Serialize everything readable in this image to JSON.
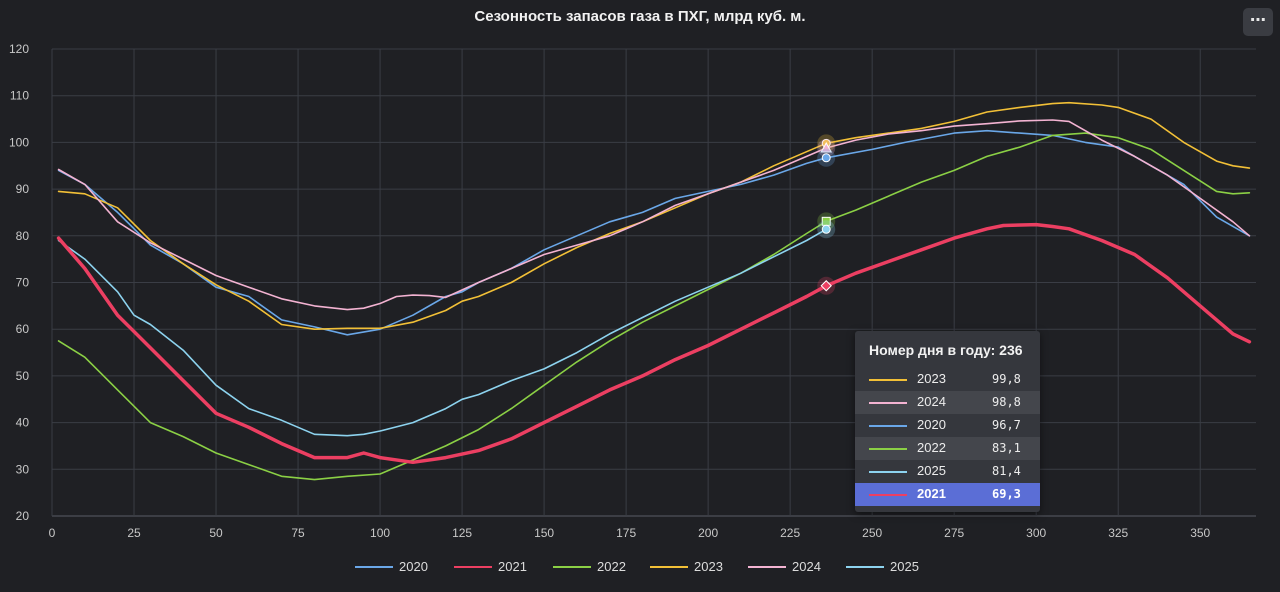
{
  "header": {
    "menu_icon": "⋯"
  },
  "chart_data": {
    "type": "line",
    "title": "Сезонность запасов газа в ПХГ, млрд куб. м.",
    "xlabel": "",
    "ylabel": "",
    "xlim": [
      0,
      367
    ],
    "ylim": [
      20,
      120
    ],
    "x_ticks": [
      0,
      25,
      50,
      75,
      100,
      125,
      150,
      175,
      200,
      225,
      250,
      275,
      300,
      325,
      350
    ],
    "y_ticks": [
      20,
      30,
      40,
      50,
      60,
      70,
      80,
      90,
      100,
      110,
      120
    ],
    "grid": true,
    "legend_position": "bottom",
    "highlight_day": 236,
    "series": [
      {
        "name": "2020",
        "color": "#6aa7e8",
        "width": 1.6,
        "points": [
          [
            2,
            94
          ],
          [
            10,
            91
          ],
          [
            20,
            85
          ],
          [
            30,
            78
          ],
          [
            40,
            74
          ],
          [
            50,
            69
          ],
          [
            60,
            67
          ],
          [
            70,
            62
          ],
          [
            80,
            60.5
          ],
          [
            90,
            58.8
          ],
          [
            100,
            60
          ],
          [
            110,
            63
          ],
          [
            120,
            67
          ],
          [
            125,
            68
          ],
          [
            130,
            70
          ],
          [
            140,
            73
          ],
          [
            150,
            77
          ],
          [
            160,
            80
          ],
          [
            170,
            83
          ],
          [
            180,
            85
          ],
          [
            190,
            88
          ],
          [
            200,
            89.5
          ],
          [
            210,
            91
          ],
          [
            220,
            93
          ],
          [
            230,
            95.5
          ],
          [
            236,
            96.7
          ],
          [
            250,
            98.5
          ],
          [
            260,
            100
          ],
          [
            275,
            102
          ],
          [
            285,
            102.5
          ],
          [
            295,
            102
          ],
          [
            305,
            101.5
          ],
          [
            315,
            100
          ],
          [
            325,
            99
          ],
          [
            335,
            95
          ],
          [
            345,
            91
          ],
          [
            355,
            84
          ],
          [
            365,
            80
          ]
        ]
      },
      {
        "name": "2021",
        "color": "#ec3f62",
        "width": 3.5,
        "points": [
          [
            2,
            79.5
          ],
          [
            10,
            73
          ],
          [
            20,
            63
          ],
          [
            30,
            56
          ],
          [
            40,
            49
          ],
          [
            50,
            42
          ],
          [
            60,
            39
          ],
          [
            70,
            35.5
          ],
          [
            80,
            32.5
          ],
          [
            90,
            32.5
          ],
          [
            95,
            33.5
          ],
          [
            100,
            32.5
          ],
          [
            110,
            31.5
          ],
          [
            120,
            32.5
          ],
          [
            130,
            34
          ],
          [
            140,
            36.5
          ],
          [
            150,
            40
          ],
          [
            160,
            43.5
          ],
          [
            170,
            47
          ],
          [
            180,
            50
          ],
          [
            190,
            53.5
          ],
          [
            200,
            56.5
          ],
          [
            210,
            60
          ],
          [
            220,
            63.5
          ],
          [
            230,
            67
          ],
          [
            236,
            69.3
          ],
          [
            245,
            72
          ],
          [
            255,
            74.5
          ],
          [
            265,
            77
          ],
          [
            275,
            79.5
          ],
          [
            285,
            81.5
          ],
          [
            290,
            82.2
          ],
          [
            300,
            82.4
          ],
          [
            305,
            82
          ],
          [
            310,
            81.5
          ],
          [
            320,
            79
          ],
          [
            330,
            76
          ],
          [
            340,
            71
          ],
          [
            350,
            65
          ],
          [
            360,
            59
          ],
          [
            365,
            57.3
          ]
        ]
      },
      {
        "name": "2022",
        "color": "#8bd045",
        "width": 1.6,
        "points": [
          [
            2,
            57.5
          ],
          [
            10,
            54
          ],
          [
            20,
            47
          ],
          [
            30,
            40
          ],
          [
            40,
            37
          ],
          [
            50,
            33.5
          ],
          [
            60,
            31
          ],
          [
            70,
            28.5
          ],
          [
            80,
            27.8
          ],
          [
            90,
            28.5
          ],
          [
            100,
            29
          ],
          [
            110,
            32
          ],
          [
            120,
            35
          ],
          [
            130,
            38.5
          ],
          [
            140,
            43
          ],
          [
            150,
            48
          ],
          [
            160,
            53
          ],
          [
            170,
            57.5
          ],
          [
            180,
            61.5
          ],
          [
            190,
            65
          ],
          [
            200,
            68.5
          ],
          [
            210,
            72
          ],
          [
            220,
            76
          ],
          [
            230,
            80.5
          ],
          [
            236,
            83.1
          ],
          [
            245,
            85.5
          ],
          [
            255,
            88.5
          ],
          [
            265,
            91.5
          ],
          [
            275,
            94
          ],
          [
            285,
            97
          ],
          [
            295,
            99
          ],
          [
            305,
            101.5
          ],
          [
            315,
            102
          ],
          [
            325,
            101
          ],
          [
            335,
            98.5
          ],
          [
            345,
            94
          ],
          [
            355,
            89.5
          ],
          [
            360,
            89
          ],
          [
            365,
            89.2
          ]
        ]
      },
      {
        "name": "2023",
        "color": "#f2c037",
        "width": 1.6,
        "points": [
          [
            2,
            89.5
          ],
          [
            10,
            89
          ],
          [
            20,
            86
          ],
          [
            30,
            79
          ],
          [
            40,
            74
          ],
          [
            50,
            69.5
          ],
          [
            60,
            66
          ],
          [
            70,
            61
          ],
          [
            80,
            60
          ],
          [
            90,
            60.2
          ],
          [
            100,
            60.2
          ],
          [
            110,
            61.5
          ],
          [
            120,
            64
          ],
          [
            125,
            66
          ],
          [
            130,
            67
          ],
          [
            140,
            70
          ],
          [
            150,
            74
          ],
          [
            160,
            77.5
          ],
          [
            170,
            80.5
          ],
          [
            180,
            83
          ],
          [
            190,
            86
          ],
          [
            200,
            89
          ],
          [
            210,
            91.5
          ],
          [
            220,
            95
          ],
          [
            230,
            98
          ],
          [
            236,
            99.8
          ],
          [
            245,
            101
          ],
          [
            255,
            102
          ],
          [
            265,
            103
          ],
          [
            275,
            104.5
          ],
          [
            285,
            106.5
          ],
          [
            295,
            107.5
          ],
          [
            305,
            108.3
          ],
          [
            310,
            108.5
          ],
          [
            320,
            108
          ],
          [
            325,
            107.5
          ],
          [
            335,
            105
          ],
          [
            345,
            100
          ],
          [
            355,
            96
          ],
          [
            360,
            95
          ],
          [
            365,
            94.5
          ]
        ]
      },
      {
        "name": "2024",
        "color": "#f3b3d2",
        "width": 1.6,
        "points": [
          [
            2,
            94.2
          ],
          [
            10,
            91
          ],
          [
            20,
            83
          ],
          [
            30,
            78.5
          ],
          [
            40,
            75
          ],
          [
            50,
            71.5
          ],
          [
            60,
            69
          ],
          [
            70,
            66.5
          ],
          [
            80,
            65
          ],
          [
            90,
            64.2
          ],
          [
            95,
            64.5
          ],
          [
            100,
            65.5
          ],
          [
            105,
            67
          ],
          [
            110,
            67.3
          ],
          [
            115,
            67.2
          ],
          [
            120,
            66.8
          ],
          [
            130,
            70
          ],
          [
            140,
            73
          ],
          [
            150,
            76
          ],
          [
            160,
            78
          ],
          [
            170,
            80
          ],
          [
            180,
            83
          ],
          [
            190,
            86.5
          ],
          [
            200,
            89
          ],
          [
            210,
            91.5
          ],
          [
            220,
            94
          ],
          [
            230,
            97
          ],
          [
            236,
            98.8
          ],
          [
            245,
            100.5
          ],
          [
            255,
            101.8
          ],
          [
            265,
            102.5
          ],
          [
            275,
            103.5
          ],
          [
            285,
            104
          ],
          [
            295,
            104.6
          ],
          [
            305,
            104.8
          ],
          [
            310,
            104.5
          ],
          [
            320,
            100.5
          ],
          [
            330,
            97
          ],
          [
            340,
            93
          ],
          [
            350,
            88
          ],
          [
            360,
            83
          ],
          [
            365,
            80
          ]
        ]
      },
      {
        "name": "2025",
        "color": "#8dd3ef",
        "width": 1.6,
        "points": [
          [
            2,
            79
          ],
          [
            10,
            75
          ],
          [
            20,
            68
          ],
          [
            25,
            63
          ],
          [
            30,
            61
          ],
          [
            40,
            55.5
          ],
          [
            50,
            48
          ],
          [
            60,
            43
          ],
          [
            70,
            40.5
          ],
          [
            80,
            37.5
          ],
          [
            90,
            37.2
          ],
          [
            95,
            37.5
          ],
          [
            100,
            38.2
          ],
          [
            110,
            40
          ],
          [
            120,
            43
          ],
          [
            125,
            45
          ],
          [
            130,
            46
          ],
          [
            140,
            49
          ],
          [
            150,
            51.5
          ],
          [
            160,
            55
          ],
          [
            170,
            59
          ],
          [
            180,
            62.5
          ],
          [
            190,
            66
          ],
          [
            200,
            69
          ],
          [
            210,
            72
          ],
          [
            220,
            75.5
          ],
          [
            230,
            79
          ],
          [
            236,
            81.4
          ]
        ]
      }
    ],
    "tooltip": {
      "title": "Номер дня в году: 236",
      "rows": [
        {
          "name": "2023",
          "value": "99,8",
          "color": "#f2c037"
        },
        {
          "name": "2024",
          "value": "98,8",
          "color": "#f3b3d2"
        },
        {
          "name": "2020",
          "value": "96,7",
          "color": "#6aa7e8"
        },
        {
          "name": "2022",
          "value": "83,1",
          "color": "#8bd045"
        },
        {
          "name": "2025",
          "value": "81,4",
          "color": "#8dd3ef"
        },
        {
          "name": "2021",
          "value": "69,3",
          "color": "#ec3f62"
        }
      ]
    }
  }
}
